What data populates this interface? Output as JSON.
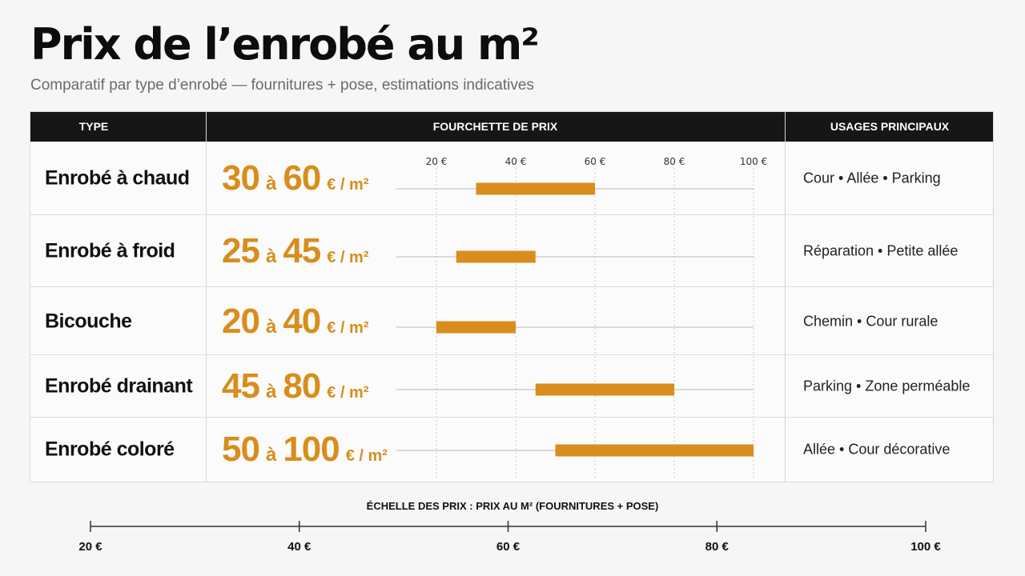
{
  "title": "Prix de l’enrobé au m²",
  "subtitle": "Comparatif par type d’enrobé — fournitures + pose, estimations indicatives",
  "headers": {
    "type": "TYPE",
    "range": "FOURCHETTE DE PRIX",
    "uses": "USAGES PRINCIPAUX"
  },
  "rows": [
    {
      "type": "Enrobé à chaud",
      "min": "30",
      "sep": "à",
      "max": "60",
      "unit": "€ / m²",
      "usages": "Cour  •  Allée  •  Parking"
    },
    {
      "type": "Enrobé à froid",
      "min": "25",
      "sep": "à",
      "max": "45",
      "unit": "€ / m²",
      "usages": "Réparation  •  Petite allée"
    },
    {
      "type": "Bicouche",
      "min": "20",
      "sep": "à",
      "max": "40",
      "unit": "€ / m²",
      "usages": "Chemin  •  Cour rurale"
    },
    {
      "type": "Enrobé drainant",
      "min": "45",
      "sep": "à",
      "max": "80",
      "unit": "€ / m²",
      "usages": "Parking  •  Zone perméable"
    },
    {
      "type": "Enrobé coloré",
      "min": "50",
      "sep": "à",
      "max": "100",
      "unit": "€ / m²",
      "usages": "Allée  •  Cour décorative"
    }
  ],
  "scale_title": "ÉCHELLE DES PRIX : PRIX AU M² (FOURNITURES + POSE)",
  "colors": {
    "accent": "#d88d1d",
    "header_bg": "#161616",
    "text": "#111111"
  },
  "chart_data": {
    "type": "bar",
    "orientation": "horizontal-range",
    "categories": [
      "Enrobé à chaud",
      "Enrobé à froid",
      "Bicouche",
      "Enrobé drainant",
      "Enrobé coloré"
    ],
    "ranges": [
      [
        30,
        60
      ],
      [
        25,
        45
      ],
      [
        20,
        40
      ],
      [
        45,
        80
      ],
      [
        50,
        100
      ]
    ],
    "x_ticks": [
      20,
      40,
      60,
      80,
      100
    ],
    "x_tick_labels": [
      "20 €",
      "40 €",
      "60 €",
      "80 €",
      "100 €"
    ],
    "xlim": [
      20,
      100
    ],
    "grid": true,
    "bar_color": "#d88d1d"
  }
}
